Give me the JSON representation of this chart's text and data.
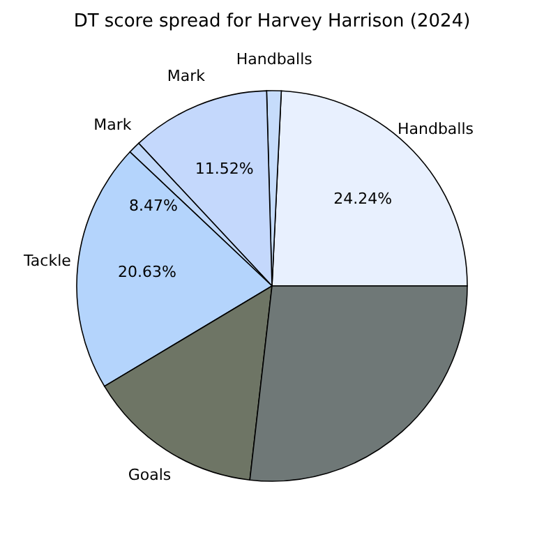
{
  "chart_data": {
    "type": "pie",
    "title": "DT score spread for Harvey Harrison (2024)",
    "categories": [
      "Handballs",
      "Handballs",
      "Mark",
      "Mark",
      "Tackle",
      "Goals",
      null
    ],
    "values": [
      24.24,
      1.2,
      11.52,
      1.0,
      20.63,
      14.6,
      26.81
    ],
    "value_labels": [
      "24.24%",
      null,
      "11.52%",
      null,
      "20.63%",
      null,
      null
    ],
    "colors": [
      "#e8f0fe",
      "#c6dcfb",
      "#c4d8fc",
      "#c0d8fa",
      "#b4d4fc",
      "#6e7565",
      "#6f7877"
    ],
    "annotations": [
      "8.47%"
    ]
  }
}
